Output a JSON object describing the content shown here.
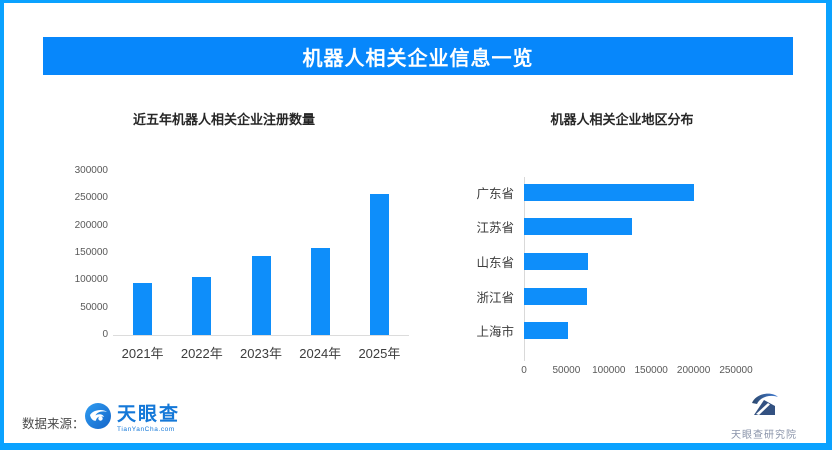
{
  "page": {
    "title": "机器人相关企业信息一览",
    "source_label": "数据来源：",
    "source_logo": {
      "name": "天眼查",
      "domain": "TianYanCha.com"
    },
    "watermark_text": "天眼查研究院"
  },
  "colors": {
    "frame_border": "#0aa2ff",
    "banner_bg": "#0787fb",
    "bar_fill": "#0e8efa",
    "axis_line": "#dcdcdc",
    "tyc_blue": "#1478d8",
    "watermark_navy": "#24477f"
  },
  "chart_data": [
    {
      "type": "bar",
      "orientation": "vertical",
      "title": "近五年机器人相关企业注册数量",
      "categories": [
        "2021年",
        "2022年",
        "2023年",
        "2024年",
        "2025年"
      ],
      "values": [
        95000,
        107000,
        145000,
        160000,
        258000
      ],
      "xlabel": "",
      "ylabel": "",
      "ylim": [
        0,
        300000
      ],
      "yticks": [
        0,
        50000,
        100000,
        150000,
        200000,
        250000,
        300000
      ],
      "grid": false,
      "legend": null
    },
    {
      "type": "bar",
      "orientation": "horizontal",
      "title": "机器人相关企业地区分布",
      "categories": [
        "广东省",
        "江苏省",
        "山东省",
        "浙江省",
        "上海市"
      ],
      "values": [
        200000,
        127000,
        75000,
        74000,
        52000
      ],
      "xlabel": "",
      "ylabel": "",
      "xlim": [
        0,
        250000
      ],
      "xticks": [
        0,
        50000,
        100000,
        150000,
        200000,
        250000
      ],
      "grid": false,
      "legend": null
    }
  ]
}
